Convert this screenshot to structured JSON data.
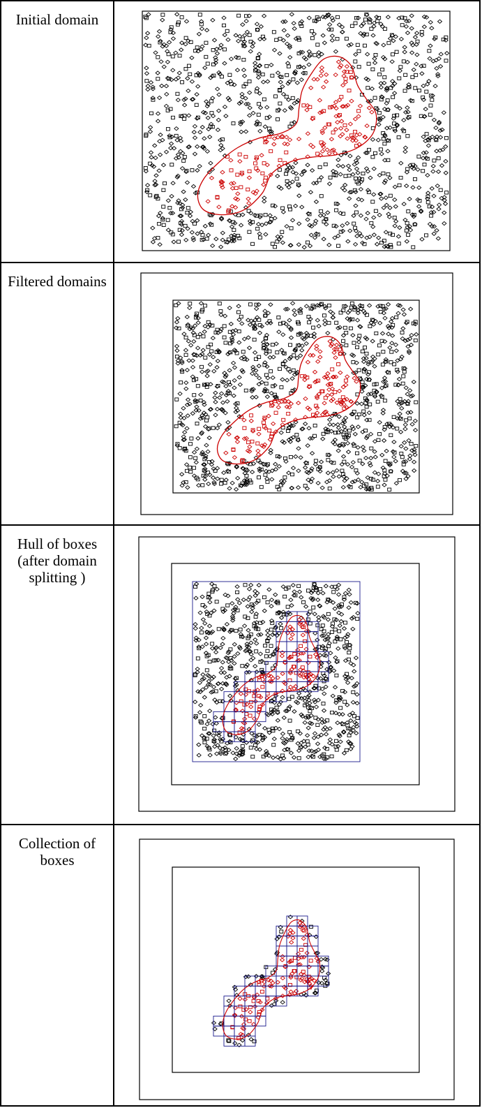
{
  "rows": [
    {
      "label": "Initial domain"
    },
    {
      "label": "Filtered domains"
    },
    {
      "label": "Hull of boxes (after domain splitting )"
    },
    {
      "label": "Collection of boxes"
    }
  ],
  "colors": {
    "points": "#000000",
    "region_points": "#cc0000",
    "boundary": "#cc0000",
    "box_grid": "#1a1a8c",
    "frame": "#000000"
  }
}
